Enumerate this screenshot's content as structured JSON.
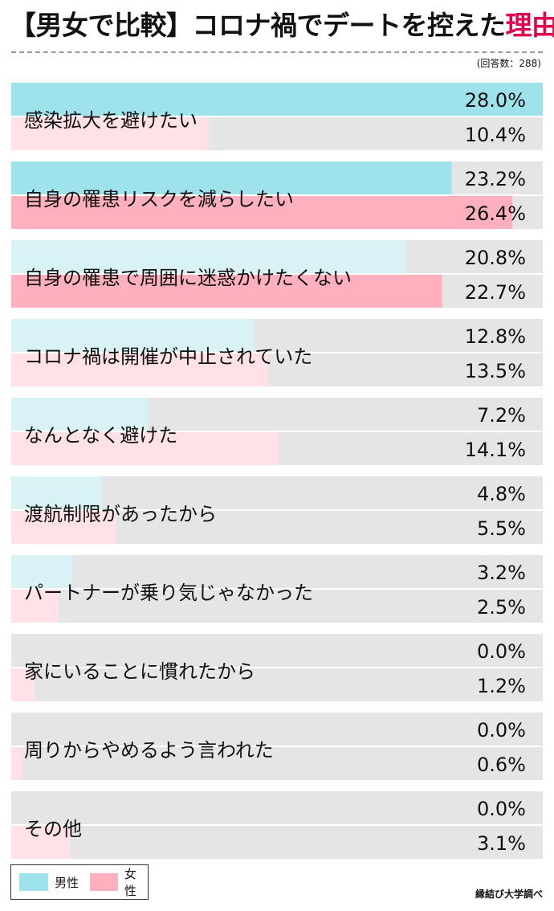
{
  "header": {
    "title_main": "【男女で比較】コロナ禍でデートを控えた",
    "title_accent": "理由",
    "respondents": "(回答数：288)"
  },
  "chart_data": {
    "type": "bar",
    "orientation": "horizontal",
    "xlim": [
      0,
      28
    ],
    "categories": [
      "感染拡大を避けたい",
      "自身の罹患リスクを減らしたい",
      "自身の罹患で周囲に迷惑かけたくない",
      "コロナ禍は開催が中止されていた",
      "なんとなく避けた",
      "渡航制限があったから",
      "パートナーが乗り気じゃなかった",
      "家にいることに慣れたから",
      "周りからやめるよう言われた",
      "その他"
    ],
    "series": [
      {
        "name": "男性",
        "values": [
          28.0,
          23.2,
          20.8,
          12.8,
          7.2,
          4.8,
          3.2,
          0.0,
          0.0,
          0.0
        ],
        "labels": [
          "28.0%",
          "23.2%",
          "20.8%",
          "12.8%",
          "7.2%",
          "4.8%",
          "3.2%",
          "0.0%",
          "0.0%",
          "0.0%"
        ]
      },
      {
        "name": "女性",
        "values": [
          10.4,
          26.4,
          22.7,
          13.5,
          14.1,
          5.5,
          2.5,
          1.2,
          0.6,
          3.1
        ],
        "labels": [
          "10.4%",
          "26.4%",
          "22.7%",
          "13.5%",
          "14.1%",
          "5.5%",
          "2.5%",
          "1.2%",
          "0.6%",
          "3.1%"
        ]
      }
    ],
    "legend_placement": "bottom-left"
  },
  "colors": {
    "male_strong": "#9ee3eb",
    "male_light": "#d8f2f6",
    "female_strong": "#ffb0be",
    "female_light": "#ffe1e7",
    "track": "#e5e5e5"
  },
  "legend": {
    "male": "男性",
    "female": "女性"
  },
  "footer": {
    "credit": "縁結び大学調べ"
  }
}
